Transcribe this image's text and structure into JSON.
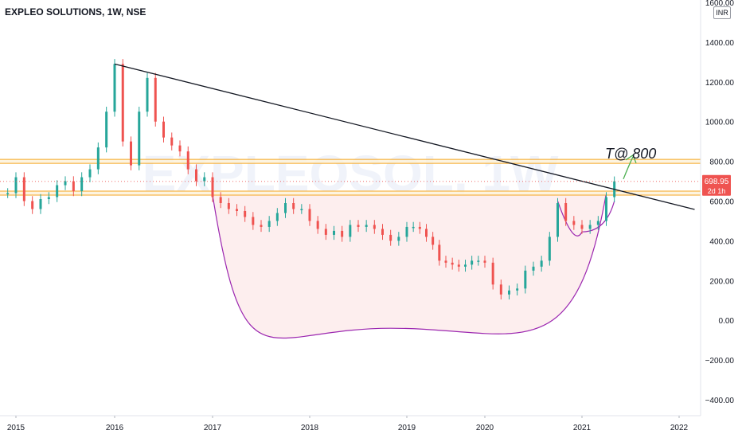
{
  "chart_data": {
    "type": "line",
    "title": "EXPLEO SOLUTIONS, 1W, NSE",
    "watermark": {
      "symbol": "EXPLEOSOL, 1W",
      "name": "EXPLEO SOLUTIONS"
    },
    "currency": "INR",
    "x_ticks": [
      "2015",
      "2016",
      "2017",
      "2018",
      "2019",
      "2020",
      "2021",
      "2022"
    ],
    "y_ticks": [
      "1600.00",
      "1400.00",
      "1200.00",
      "1000.00",
      "800.00",
      "600.00",
      "400.00",
      "200.00",
      "0.00",
      "−200.00",
      "−400.00"
    ],
    "ylim": [
      -480,
      1620
    ],
    "last_price": {
      "value": "698.95",
      "countdown": "2d 1h"
    },
    "annotation": "T@ 800",
    "horizontal_levels": [
      {
        "low": 790,
        "high": 810,
        "color": "#f5a623"
      },
      {
        "low": 630,
        "high": 650,
        "color": "#f5a623"
      }
    ],
    "trendline": {
      "from": {
        "date": "2016-01",
        "price": 1290
      },
      "to": {
        "date": "2021-10",
        "price": 590
      },
      "color": "#131722"
    },
    "cup_curve": {
      "from": {
        "date": "2017-01",
        "price": 630
      },
      "bottom": {
        "date": "2018-11",
        "price": -40
      },
      "to": {
        "date": "2021-04",
        "price": 640
      },
      "color": "#9c27b0"
    },
    "handle_curve": {
      "from": {
        "date": "2020-10",
        "price": 600
      },
      "bottom": {
        "date": "2021-01",
        "price": 445
      },
      "to": {
        "date": "2021-05",
        "price": 600
      },
      "color": "#9c27b0"
    },
    "target_arrow_color": "#4caf50",
    "up_color": "#26a69a",
    "down_color": "#ef5350",
    "series": [
      {
        "name": "EXPLEO SOLUTIONS",
        "x": [
          "2014-12",
          "2015-01",
          "2015-02",
          "2015-03",
          "2015-04",
          "2015-05",
          "2015-06",
          "2015-07",
          "2015-08",
          "2015-09",
          "2015-10",
          "2015-11",
          "2015-12",
          "2016-01",
          "2016-02",
          "2016-03",
          "2016-04",
          "2016-05",
          "2016-06",
          "2016-07",
          "2016-08",
          "2016-09",
          "2016-10",
          "2016-11",
          "2016-12",
          "2017-01",
          "2017-02",
          "2017-03",
          "2017-04",
          "2017-05",
          "2017-06",
          "2017-07",
          "2017-08",
          "2017-09",
          "2017-10",
          "2017-11",
          "2017-12",
          "2018-01",
          "2018-02",
          "2018-03",
          "2018-04",
          "2018-05",
          "2018-06",
          "2018-07",
          "2018-08",
          "2018-09",
          "2018-10",
          "2018-11",
          "2018-12",
          "2019-01",
          "2019-02",
          "2019-03",
          "2019-04",
          "2019-05",
          "2019-06",
          "2019-07",
          "2019-08",
          "2019-09",
          "2019-10",
          "2019-11",
          "2019-12",
          "2020-01",
          "2020-02",
          "2020-03",
          "2020-04",
          "2020-05",
          "2020-06",
          "2020-07",
          "2020-08",
          "2020-09",
          "2020-10",
          "2020-11",
          "2020-12",
          "2021-01",
          "2021-02",
          "2021-03",
          "2021-04",
          "2021-05"
        ],
        "values": [
          640,
          720,
          600,
          560,
          610,
          620,
          680,
          700,
          650,
          720,
          760,
          870,
          1050,
          1290,
          900,
          780,
          1050,
          1220,
          1000,
          920,
          880,
          850,
          760,
          700,
          720,
          620,
          590,
          560,
          550,
          520,
          480,
          470,
          500,
          540,
          590,
          560,
          560,
          500,
          460,
          430,
          450,
          420,
          480,
          470,
          480,
          460,
          430,
          400,
          420,
          470,
          470,
          460,
          420,
          380,
          300,
          290,
          280,
          270,
          280,
          300,
          300,
          290,
          180,
          130,
          150,
          160,
          250,
          270,
          300,
          420,
          590,
          500,
          480,
          460,
          480,
          500,
          620,
          699
        ]
      }
    ]
  }
}
